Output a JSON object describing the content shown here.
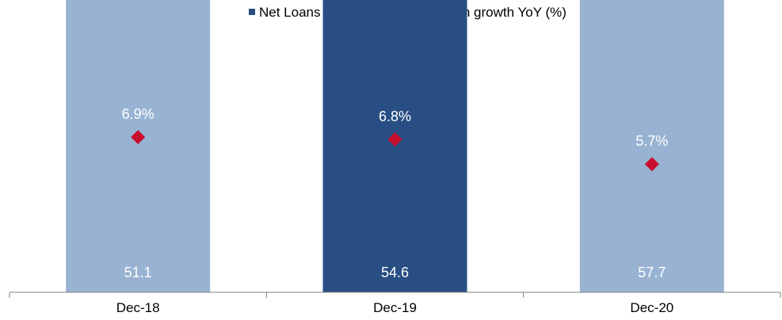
{
  "chart_data": {
    "type": "bar",
    "categories": [
      "Dec-18",
      "Dec-19",
      "Dec-20"
    ],
    "series": [
      {
        "name": "Net Loans",
        "type": "bar",
        "values": [
          51.1,
          54.6,
          57.7
        ],
        "value_labels": [
          "51.1",
          "54.6",
          "57.7"
        ],
        "colors": [
          "#98b3d2",
          "#284e84",
          "#98b3d2"
        ],
        "legend_color": "#284e84"
      },
      {
        "name": "Net loan growth YoY (%)",
        "type": "scatter",
        "marker": "diamond",
        "values": [
          6.9,
          6.8,
          5.7
        ],
        "value_labels": [
          "6.9%",
          "6.8%",
          "5.7%"
        ],
        "color": "#c8102e"
      }
    ],
    "legend": {
      "position": "top",
      "items": [
        "Net Loans",
        "Net loan growth YoY (%)"
      ]
    },
    "bars_full_height": true,
    "growth_axis_range": [
      0,
      13
    ],
    "grid": false
  }
}
